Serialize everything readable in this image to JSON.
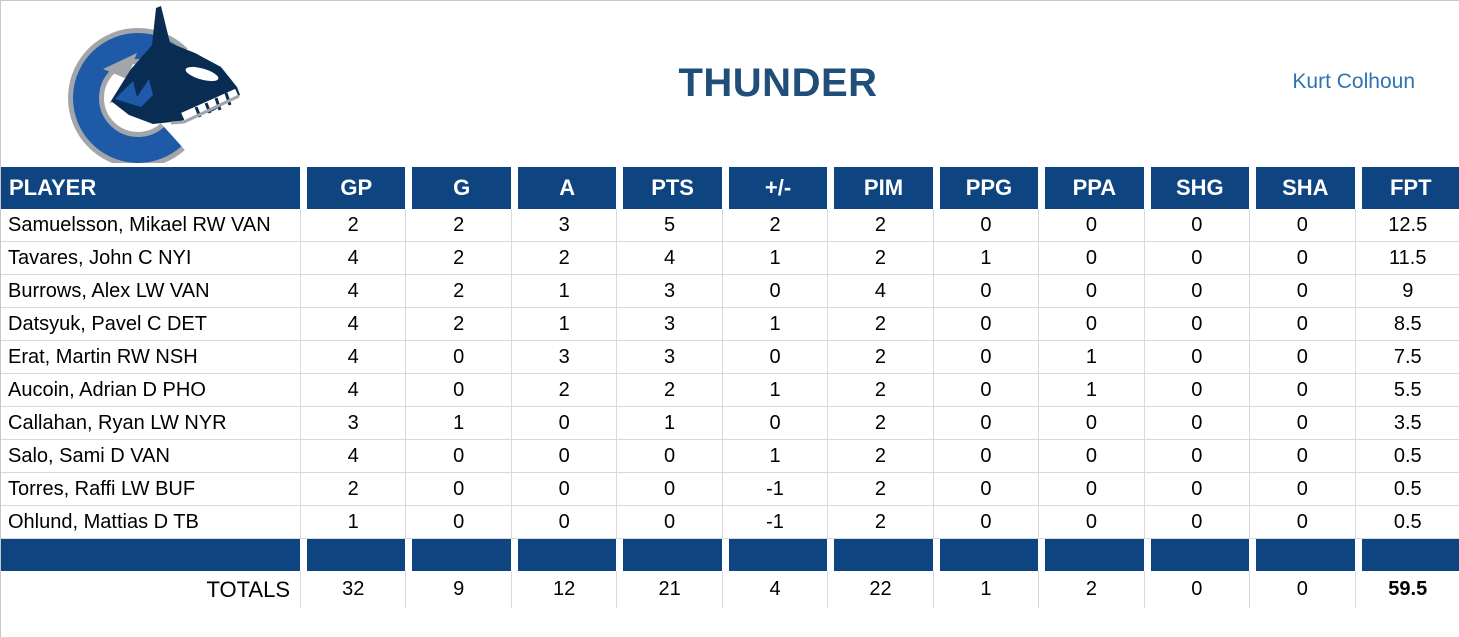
{
  "header": {
    "title": "THUNDER",
    "owner": "Kurt Colhoun",
    "logo": "vancouver-canucks-orca-logo"
  },
  "colors": {
    "table_header_bg": "#0E4480",
    "title_blue": "#1F4E79",
    "owner_blue": "#2E74B5",
    "grid_gray": "#D9D9D9",
    "logo_navy": "#092C52",
    "logo_royal_blue": "#1E5AA8",
    "logo_silver": "#A2A6AB"
  },
  "table": {
    "columns": [
      "PLAYER",
      "GP",
      "G",
      "A",
      "PTS",
      "+/-",
      "PIM",
      "PPG",
      "PPA",
      "SHG",
      "SHA",
      "FPT"
    ],
    "rows": [
      {
        "player": "Samuelsson, Mikael RW VAN",
        "stats": [
          "2",
          "2",
          "3",
          "5",
          "2",
          "2",
          "0",
          "0",
          "0",
          "0",
          "12.5"
        ]
      },
      {
        "player": "Tavares, John C NYI",
        "stats": [
          "4",
          "2",
          "2",
          "4",
          "1",
          "2",
          "1",
          "0",
          "0",
          "0",
          "11.5"
        ]
      },
      {
        "player": "Burrows, Alex LW VAN",
        "stats": [
          "4",
          "2",
          "1",
          "3",
          "0",
          "4",
          "0",
          "0",
          "0",
          "0",
          "9"
        ]
      },
      {
        "player": "Datsyuk, Pavel C DET",
        "stats": [
          "4",
          "2",
          "1",
          "3",
          "1",
          "2",
          "0",
          "0",
          "0",
          "0",
          "8.5"
        ]
      },
      {
        "player": "Erat, Martin RW NSH",
        "stats": [
          "4",
          "0",
          "3",
          "3",
          "0",
          "2",
          "0",
          "1",
          "0",
          "0",
          "7.5"
        ]
      },
      {
        "player": "Aucoin, Adrian D PHO",
        "stats": [
          "4",
          "0",
          "2",
          "2",
          "1",
          "2",
          "0",
          "1",
          "0",
          "0",
          "5.5"
        ]
      },
      {
        "player": "Callahan, Ryan LW NYR",
        "stats": [
          "3",
          "1",
          "0",
          "1",
          "0",
          "2",
          "0",
          "0",
          "0",
          "0",
          "3.5"
        ]
      },
      {
        "player": "Salo, Sami D VAN",
        "stats": [
          "4",
          "0",
          "0",
          "0",
          "1",
          "2",
          "0",
          "0",
          "0",
          "0",
          "0.5"
        ]
      },
      {
        "player": "Torres, Raffi LW BUF",
        "stats": [
          "2",
          "0",
          "0",
          "0",
          "-1",
          "2",
          "0",
          "0",
          "0",
          "0",
          "0.5"
        ]
      },
      {
        "player": "Ohlund, Mattias D TB",
        "stats": [
          "1",
          "0",
          "0",
          "0",
          "-1",
          "2",
          "0",
          "0",
          "0",
          "0",
          "0.5"
        ]
      }
    ],
    "totals_label": "TOTALS",
    "totals": [
      "32",
      "9",
      "12",
      "21",
      "4",
      "22",
      "1",
      "2",
      "0",
      "0",
      "59.5"
    ]
  }
}
